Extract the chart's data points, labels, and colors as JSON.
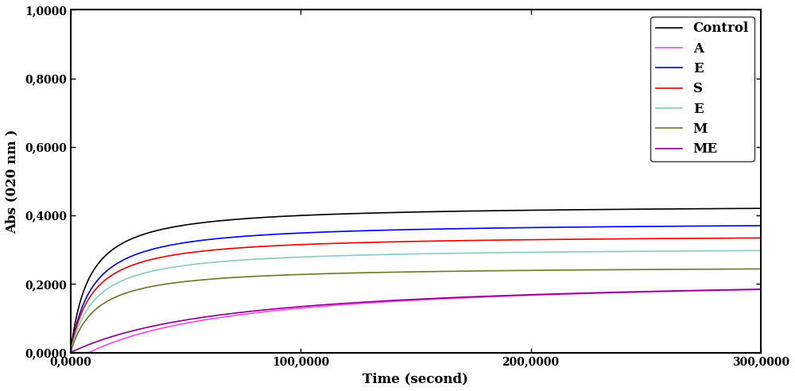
{
  "xlabel": "Time (second)",
  "ylabel": "Abs (020 nm )",
  "xlim": [
    0,
    300
  ],
  "ylim": [
    0,
    1.0
  ],
  "xticks": [
    0,
    100,
    200,
    300
  ],
  "yticks": [
    0.0,
    0.2,
    0.4,
    0.6,
    0.8,
    1.0
  ],
  "xtick_labels": [
    "0,0000",
    "100,0000",
    "200,0000",
    "300,0000"
  ],
  "ytick_labels": [
    "0,0000",
    "0,2000",
    "0,4000",
    "0,6000",
    "0,8000",
    "1,0000"
  ],
  "series": [
    {
      "label": "Control",
      "color": "#000000",
      "Vmax": 0.432,
      "Km": 8.0,
      "delay": 0.0
    },
    {
      "label": "A",
      "color": "#FF44FF",
      "Vmax": 0.228,
      "Km": 70.0,
      "delay": 8.0
    },
    {
      "label": "E",
      "color": "#0000EE",
      "Vmax": 0.382,
      "Km": 9.5,
      "delay": 0.0
    },
    {
      "label": "S",
      "color": "#EE0000",
      "Vmax": 0.345,
      "Km": 9.5,
      "delay": 0.0
    },
    {
      "label": "E",
      "color": "#88CCBB",
      "Vmax": 0.308,
      "Km": 10.5,
      "delay": 0.0
    },
    {
      "label": "M",
      "color": "#6B7B2A",
      "Vmax": 0.253,
      "Km": 11.0,
      "delay": 0.0
    },
    {
      "label": "ME",
      "color": "#880088",
      "Vmax": 0.228,
      "Km": 70.0,
      "delay": 0.0
    }
  ],
  "legend_loc": "upper right",
  "legend_fontsize": 12,
  "axis_label_fontsize": 12,
  "tick_fontsize": 10
}
